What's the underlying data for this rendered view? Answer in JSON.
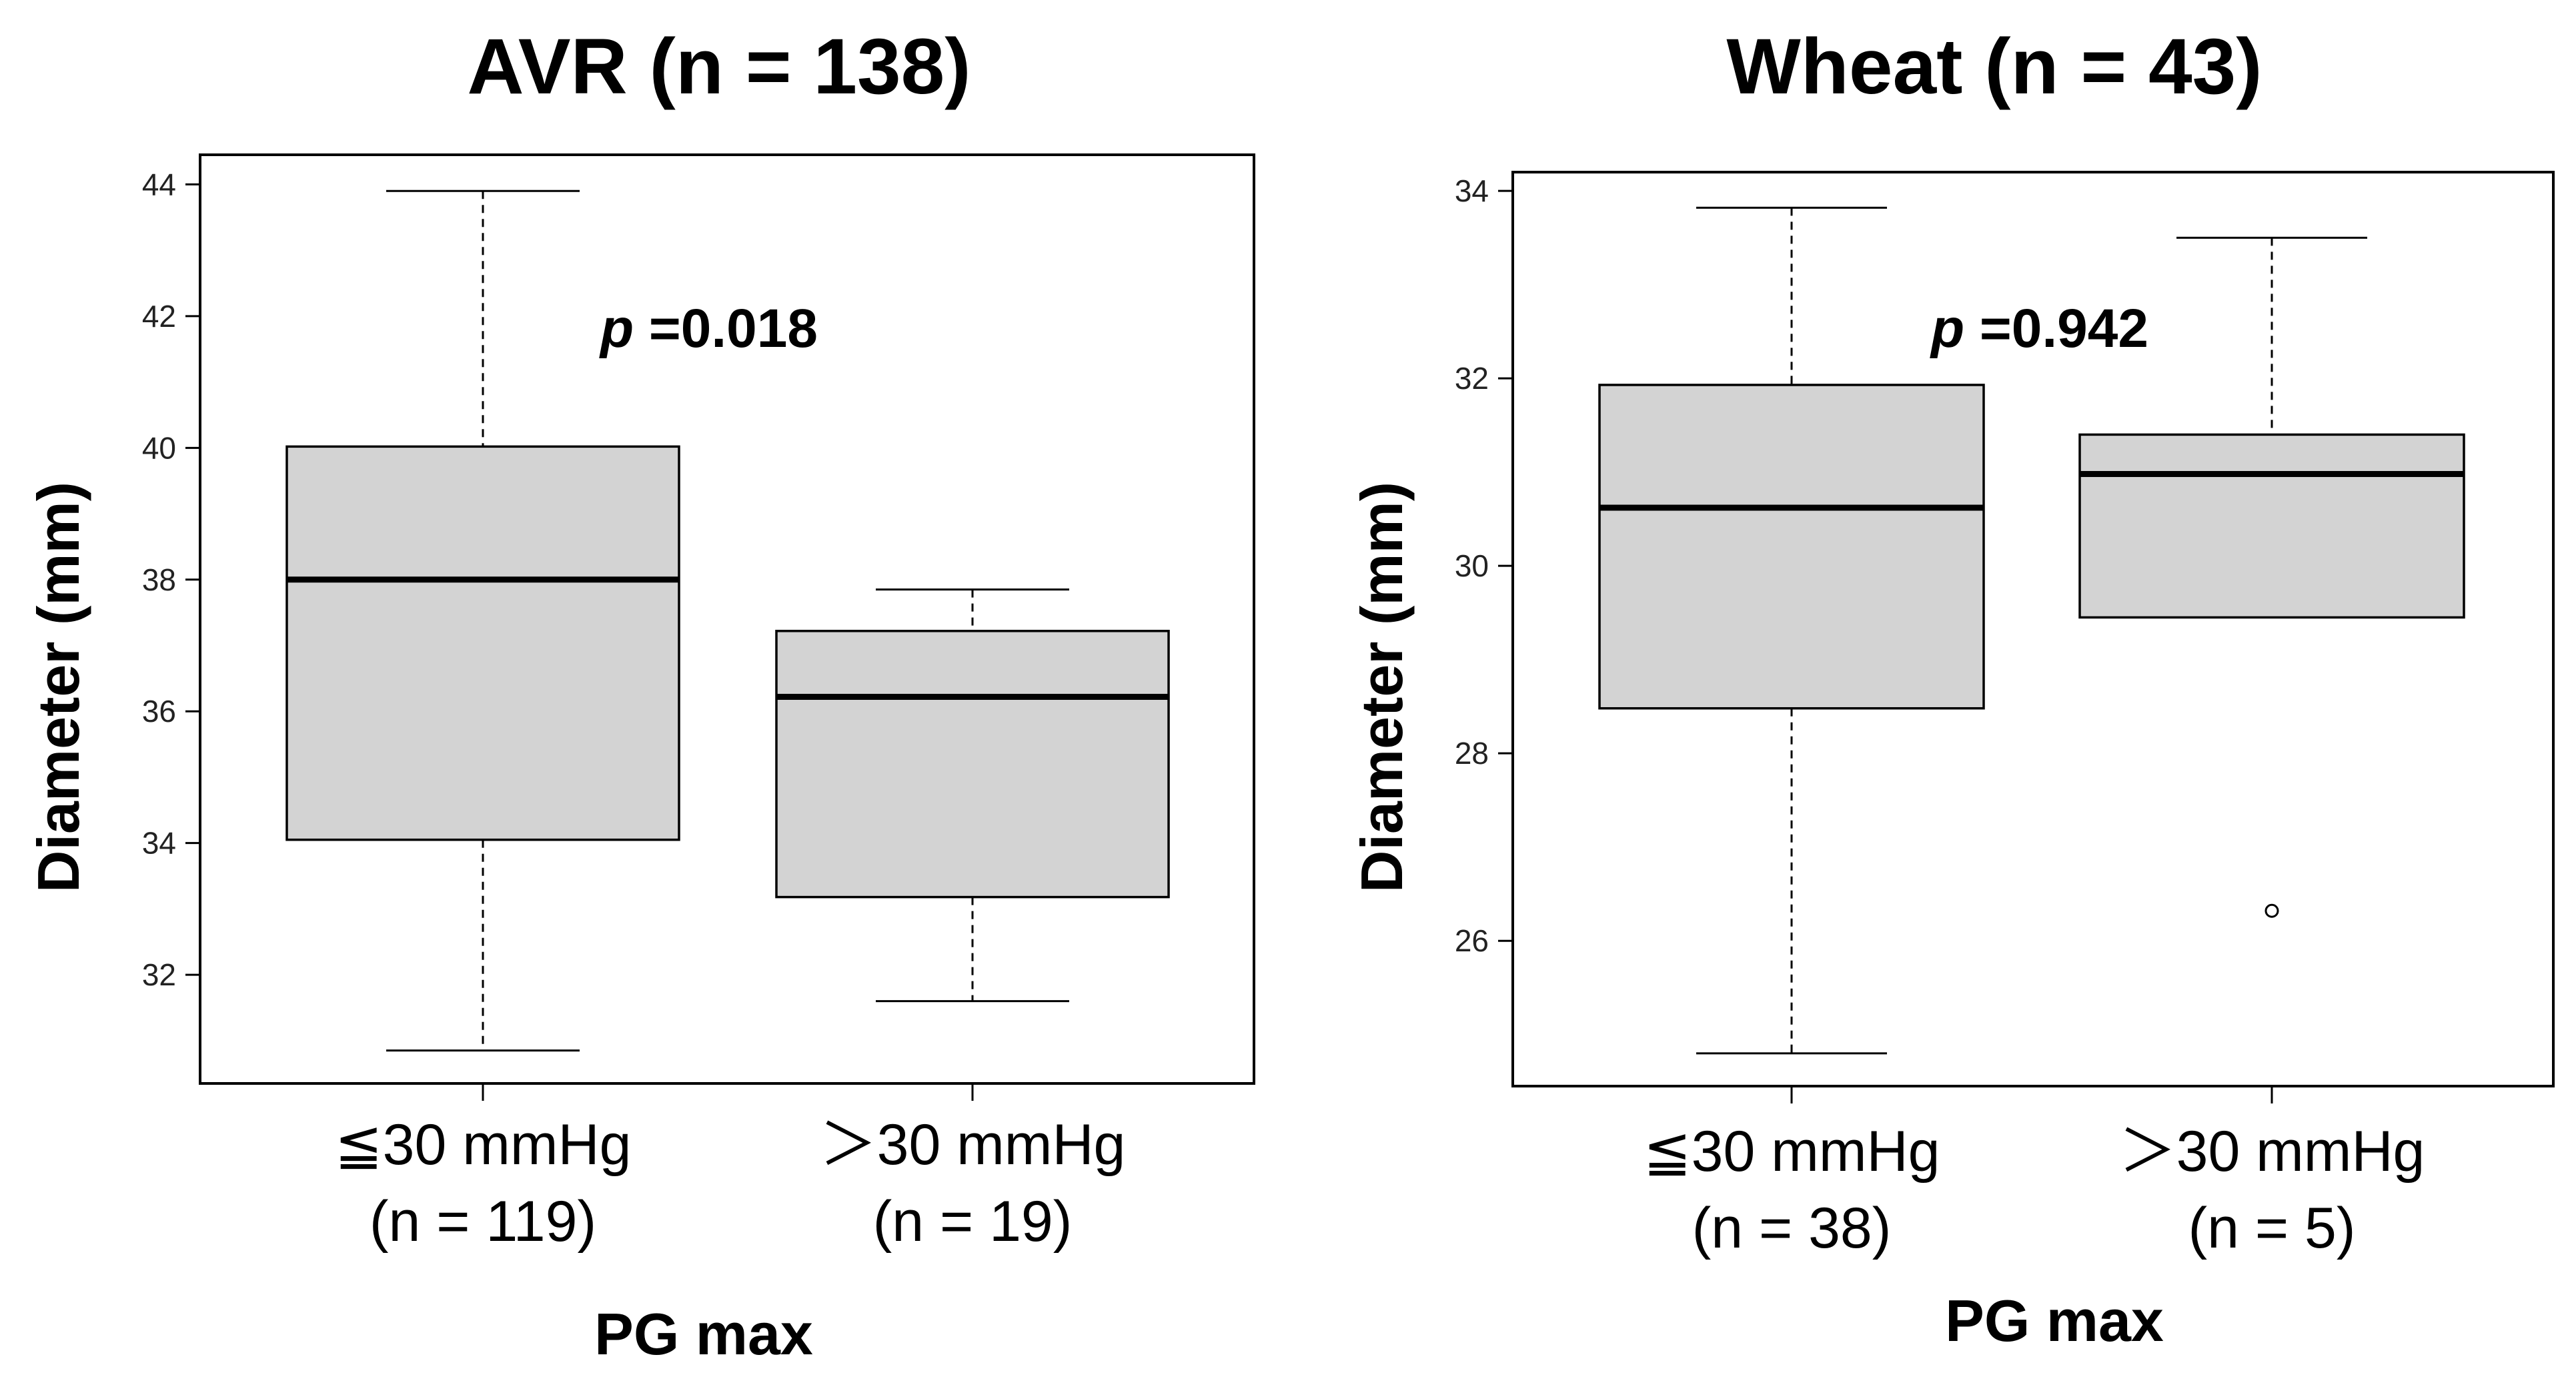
{
  "chart_data": [
    {
      "type": "box",
      "title": "AVR (n = 138)",
      "xlabel": "PG max",
      "ylabel": "Diameter (mm)",
      "ylim": [
        30.35,
        44.45
      ],
      "yticks": [
        "32",
        "34",
        "36",
        "38",
        "40",
        "42",
        "44"
      ],
      "p_label": "p",
      "p_value": " =0.018",
      "groups": [
        {
          "label": "≦30 mmHg",
          "n_label": "(n = 119)",
          "whisker_low": 30.85,
          "q1": 34.05,
          "median": 38.0,
          "q3": 40.02,
          "whisker_high": 43.9,
          "outliers": []
        },
        {
          "label": "＞30 mmHg",
          "n_label": "(n = 19)",
          "whisker_low": 31.6,
          "q1": 33.18,
          "median": 36.22,
          "q3": 37.22,
          "whisker_high": 37.85,
          "outliers": []
        }
      ]
    },
    {
      "type": "box",
      "title": "Wheat (n = 43)",
      "xlabel": "PG max",
      "ylabel": "Diameter (mm)",
      "ylim": [
        24.45,
        34.2
      ],
      "yticks": [
        "26",
        "28",
        "30",
        "32",
        "34"
      ],
      "p_label": "p",
      "p_value": " =0.942",
      "groups": [
        {
          "label": "≦30 mmHg",
          "n_label": "(n = 38)",
          "whisker_low": 24.8,
          "q1": 28.48,
          "median": 30.62,
          "q3": 31.93,
          "whisker_high": 33.82,
          "outliers": []
        },
        {
          "label": "＞30 mmHg",
          "n_label": "(n = 5)",
          "whisker_low": 29.45,
          "q1": 29.45,
          "median": 30.98,
          "q3": 31.4,
          "whisker_high": 33.5,
          "outliers": [
            26.32
          ]
        }
      ]
    }
  ],
  "colors": {
    "box_fill": "#d3d3d3",
    "line": "#000000"
  }
}
